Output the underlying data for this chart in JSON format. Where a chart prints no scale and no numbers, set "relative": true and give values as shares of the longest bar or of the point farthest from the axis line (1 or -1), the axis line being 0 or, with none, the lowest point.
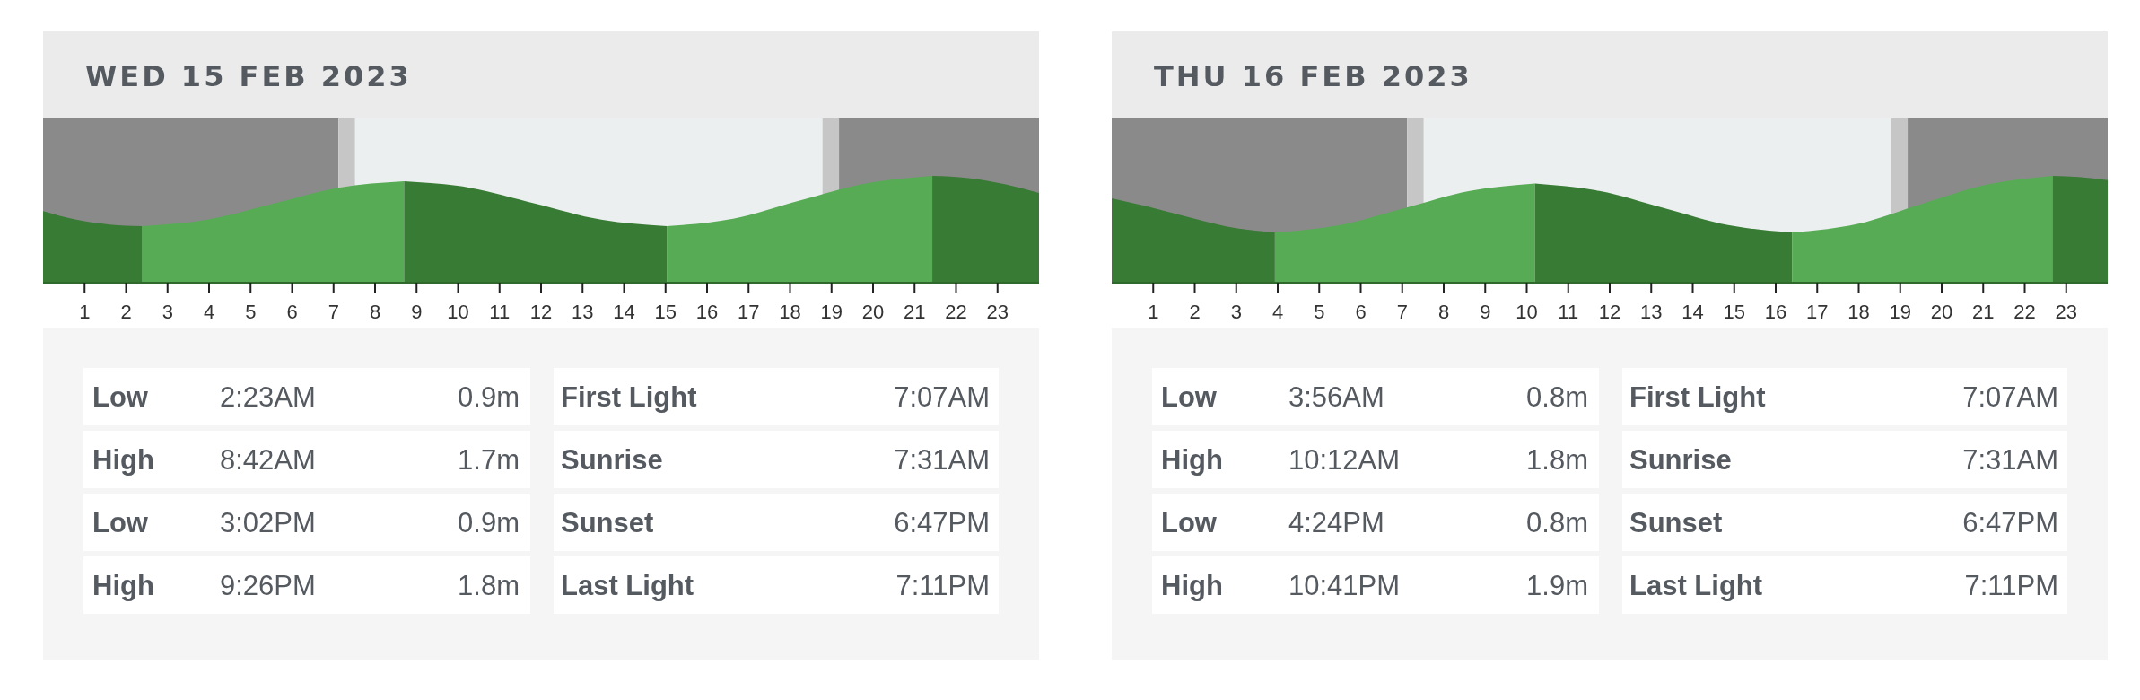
{
  "chart_data": [
    {
      "type": "area",
      "title": "WED 15 FEB 2023",
      "relative": true,
      "xlim": [
        0,
        24
      ],
      "xticks": [
        1,
        2,
        3,
        4,
        5,
        6,
        7,
        8,
        9,
        10,
        11,
        12,
        13,
        14,
        15,
        16,
        17,
        18,
        19,
        20,
        21,
        22,
        23
      ],
      "series": [
        {
          "color": "#387b34",
          "x": [
            0,
            0.8,
            1.6,
            2.38
          ],
          "values": [
            0.67,
            0.59,
            0.545,
            0.53
          ]
        },
        {
          "color": "#57ab55",
          "x": [
            2.38,
            3.96,
            5.54,
            7.12,
            8.7
          ],
          "values": [
            0.53,
            0.59,
            0.74,
            0.89,
            0.95
          ]
        },
        {
          "color": "#387b34",
          "x": [
            8.7,
            10.28,
            11.87,
            13.45,
            15.03
          ],
          "values": [
            0.95,
            0.89,
            0.74,
            0.59,
            0.53
          ]
        },
        {
          "color": "#57ab55",
          "x": [
            15.03,
            16.63,
            18.23,
            19.83,
            21.43
          ],
          "values": [
            0.53,
            0.6,
            0.77,
            0.93,
            1
          ]
        },
        {
          "color": "#387b34",
          "x": [
            21.43,
            22.3,
            23.2,
            24
          ],
          "values": [
            1,
            0.98,
            0.92,
            0.84
          ]
        }
      ],
      "bands": [
        {
          "axis": "x",
          "from": 0,
          "to": 7.12,
          "color": "#8a8a8a"
        },
        {
          "axis": "x",
          "from": 7.12,
          "to": 7.52,
          "color": "#c6c6c6"
        },
        {
          "axis": "x",
          "from": 7.52,
          "to": 18.78,
          "color": "#eceff0"
        },
        {
          "axis": "x",
          "from": 18.78,
          "to": 19.18,
          "color": "#c6c6c6"
        },
        {
          "axis": "x",
          "from": 19.18,
          "to": 24,
          "color": "#8a8a8a"
        }
      ],
      "annotations": [
        "Low",
        "2:23AM",
        "0.9m",
        "First Light",
        "7:07AM",
        "High",
        "8:42AM",
        "1.7m",
        "Sunrise",
        "7:31AM",
        "Low",
        "3:02PM",
        "0.9m",
        "Sunset",
        "6:47PM",
        "High",
        "9:26PM",
        "1.8m",
        "Last Light",
        "7:11PM"
      ]
    },
    {
      "type": "area",
      "title": "THU 16 FEB 2023",
      "relative": true,
      "xlim": [
        0,
        24
      ],
      "xticks": [
        1,
        2,
        3,
        4,
        5,
        6,
        7,
        8,
        9,
        10,
        11,
        12,
        13,
        14,
        15,
        16,
        17,
        18,
        19,
        20,
        21,
        22,
        23
      ],
      "series": [
        {
          "color": "#387b34",
          "x": [
            0,
            1,
            2,
            3,
            3.93
          ],
          "values": [
            0.79,
            0.7,
            0.6,
            0.51,
            0.47
          ]
        },
        {
          "color": "#57ab55",
          "x": [
            3.93,
            5.5,
            7.07,
            8.63,
            10.2
          ],
          "values": [
            0.47,
            0.54,
            0.7,
            0.86,
            0.93
          ]
        },
        {
          "color": "#387b34",
          "x": [
            10.2,
            11.75,
            13.3,
            14.85,
            16.4
          ],
          "values": [
            0.93,
            0.86,
            0.7,
            0.54,
            0.47
          ]
        },
        {
          "color": "#57ab55",
          "x": [
            16.4,
            17.97,
            19.54,
            21.11,
            22.68
          ],
          "values": [
            0.47,
            0.55,
            0.74,
            0.92,
            1
          ]
        },
        {
          "color": "#387b34",
          "x": [
            22.68,
            23.3,
            24
          ],
          "values": [
            1,
            0.99,
            0.96
          ]
        }
      ],
      "bands": [
        {
          "axis": "x",
          "from": 0,
          "to": 7.12,
          "color": "#8a8a8a"
        },
        {
          "axis": "x",
          "from": 7.12,
          "to": 7.52,
          "color": "#c6c6c6"
        },
        {
          "axis": "x",
          "from": 7.52,
          "to": 18.78,
          "color": "#eceff0"
        },
        {
          "axis": "x",
          "from": 18.78,
          "to": 19.18,
          "color": "#c6c6c6"
        },
        {
          "axis": "x",
          "from": 19.18,
          "to": 24,
          "color": "#8a8a8a"
        }
      ],
      "annotations": [
        "Low",
        "3:56AM",
        "0.8m",
        "First Light",
        "7:07AM",
        "High",
        "10:12AM",
        "1.8m",
        "Sunrise",
        "7:31AM",
        "Low",
        "4:24PM",
        "0.8m",
        "Sunset",
        "6:47PM",
        "High",
        "10:41PM",
        "1.9m",
        "Last Light",
        "7:11PM"
      ]
    }
  ]
}
